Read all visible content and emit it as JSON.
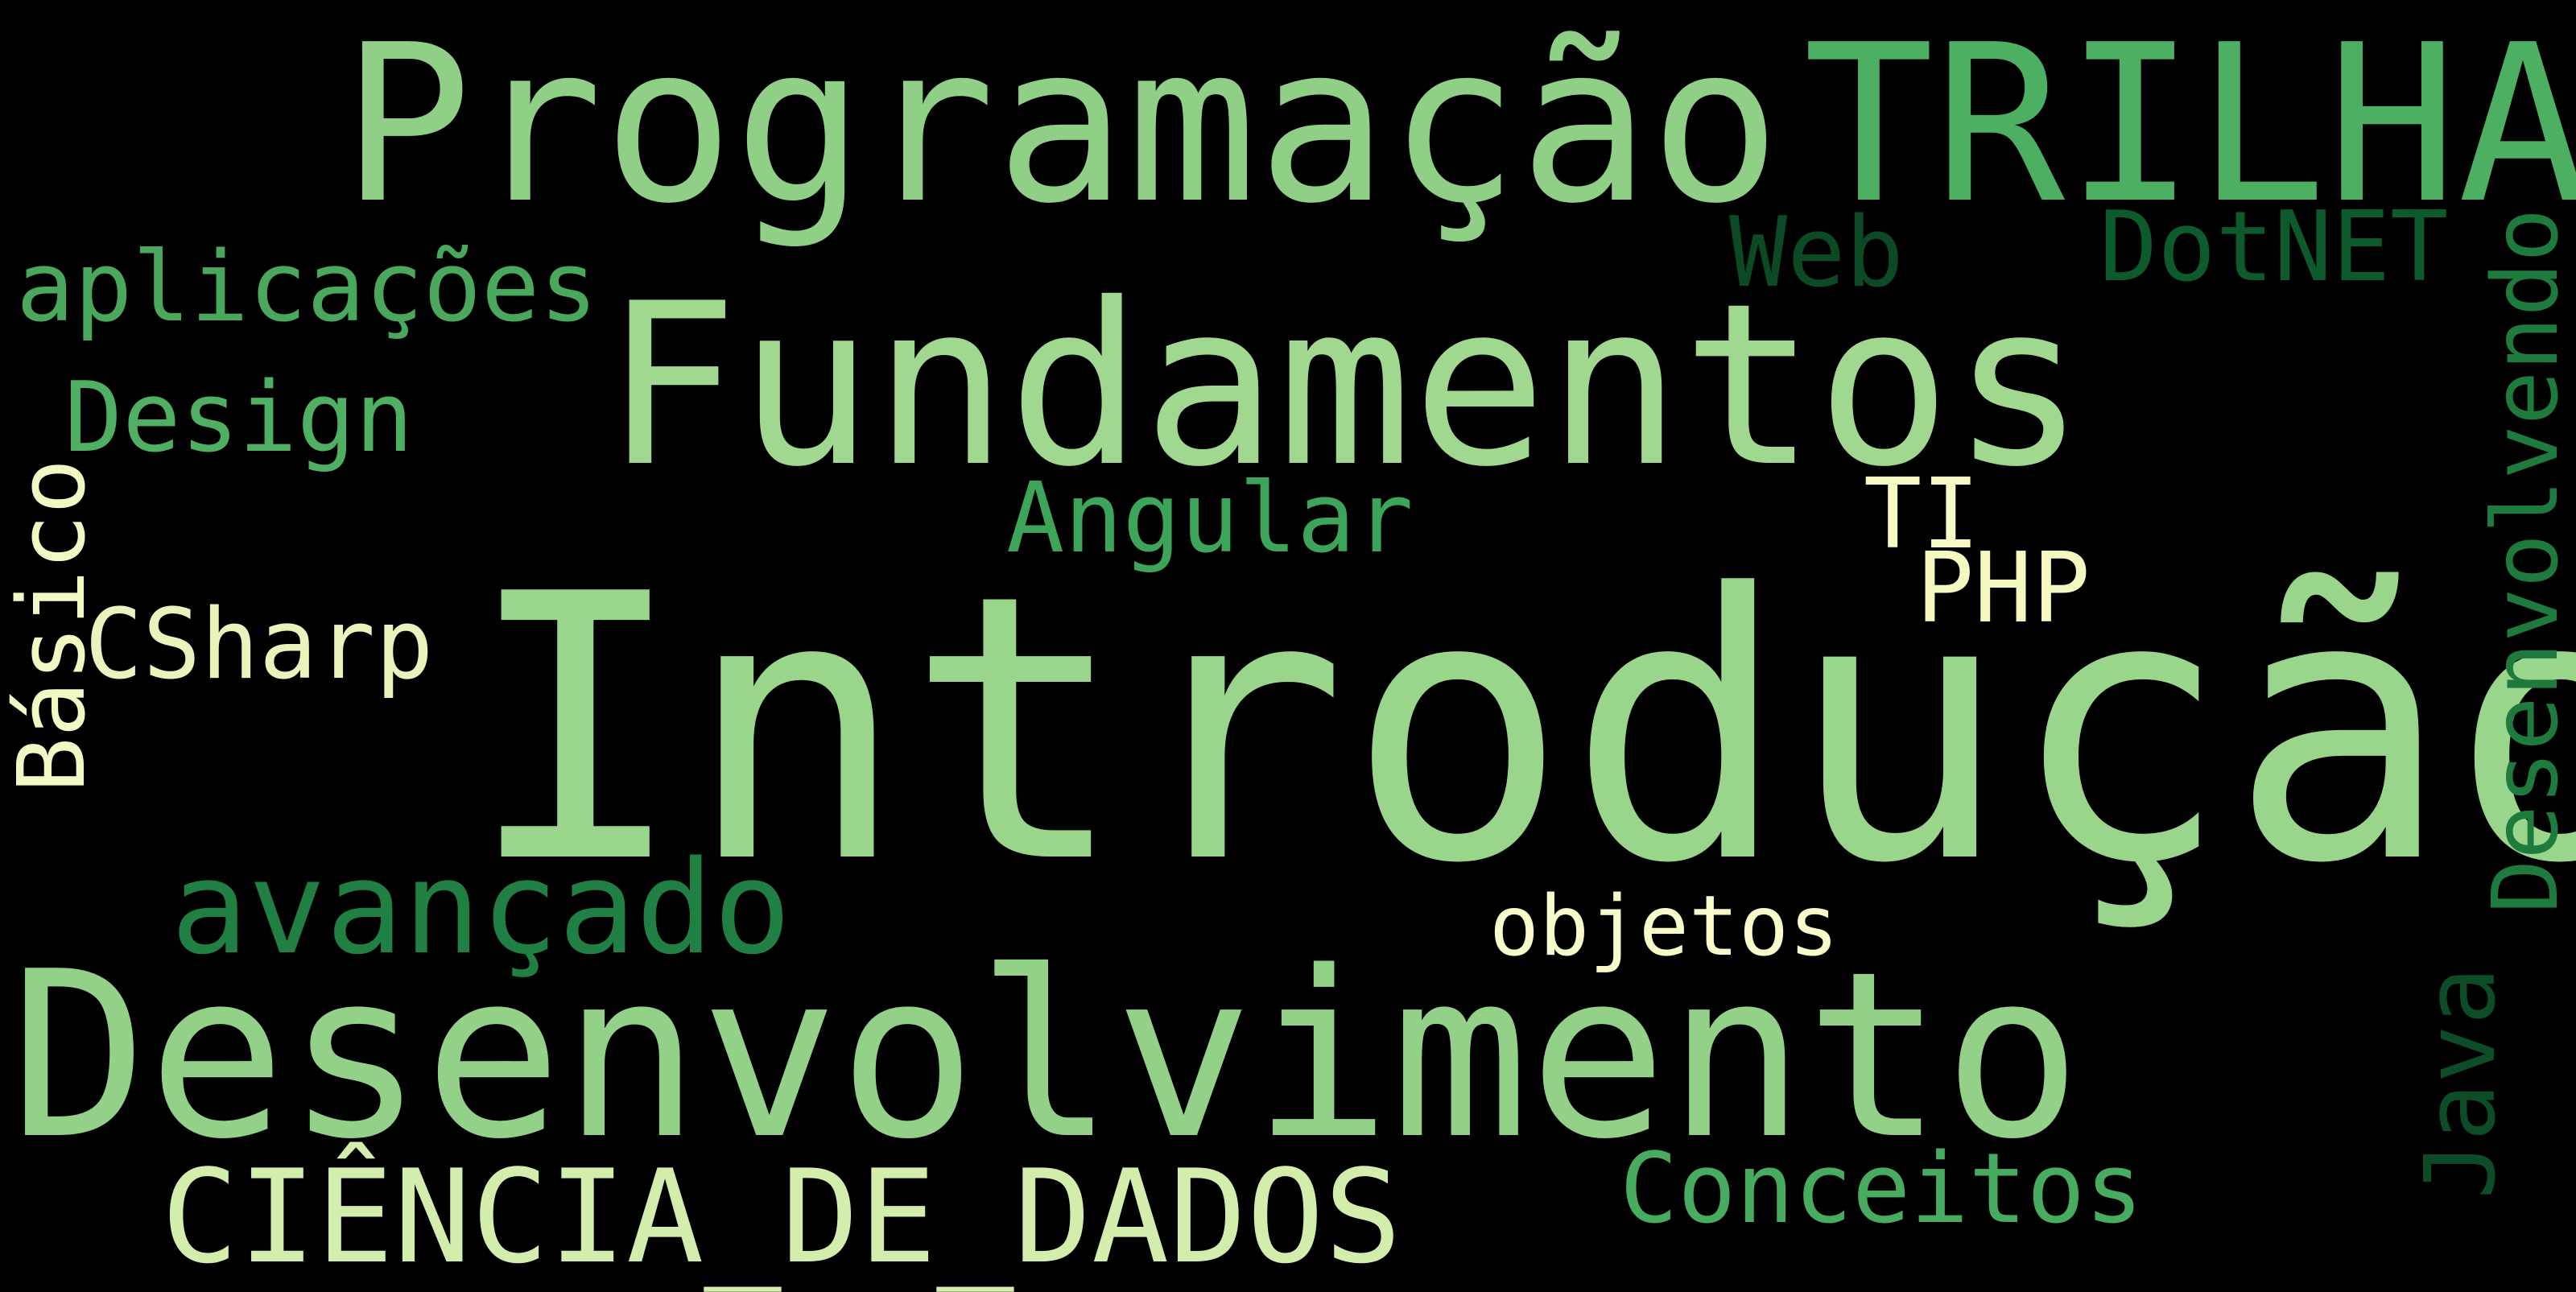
{
  "wordcloud": {
    "background": "#000000",
    "words": [
      {
        "id": "programacao",
        "text": "Programação",
        "color": "#8fcf86",
        "vertical": false
      },
      {
        "id": "trilha",
        "text": "TRILHA",
        "color": "#4caf62",
        "vertical": false
      },
      {
        "id": "aplicacoes",
        "text": "aplicações",
        "color": "#4aa85c",
        "vertical": false
      },
      {
        "id": "web",
        "text": "Web",
        "color": "#0b4a25",
        "vertical": false
      },
      {
        "id": "dotnet",
        "text": "DotNET",
        "color": "#0d5a2c",
        "vertical": false
      },
      {
        "id": "fundamentos",
        "text": "Fundamentos",
        "color": "#a0d88f",
        "vertical": false
      },
      {
        "id": "design",
        "text": "Design",
        "color": "#4fb064",
        "vertical": false
      },
      {
        "id": "basico",
        "text": "Básico",
        "color": "#f2f7c4",
        "vertical": true
      },
      {
        "id": "angular",
        "text": "Angular",
        "color": "#3da55a",
        "vertical": false
      },
      {
        "id": "ti",
        "text": "TI",
        "color": "#f7f9c5",
        "vertical": false
      },
      {
        "id": "php",
        "text": "PHP",
        "color": "#f5f8bf",
        "vertical": false
      },
      {
        "id": "csharp",
        "text": "CSharp",
        "color": "#e9f4bc",
        "vertical": false
      },
      {
        "id": "introducao",
        "text": "Introdução",
        "color": "#99d58a",
        "vertical": false
      },
      {
        "id": "desenvolvendo",
        "text": "Desenvolvendo",
        "color": "#1f7a3e",
        "vertical": true
      },
      {
        "id": "avancado",
        "text": "avançado",
        "color": "#208043",
        "vertical": false
      },
      {
        "id": "objetos",
        "text": "objetos",
        "color": "#f8fbc9",
        "vertical": false
      },
      {
        "id": "java",
        "text": "Java",
        "color": "#0c4d28",
        "vertical": true
      },
      {
        "id": "desenvolvimento",
        "text": "Desenvolvimento",
        "color": "#93d188",
        "vertical": false
      },
      {
        "id": "conceitos",
        "text": "Conceitos",
        "color": "#48ac60",
        "vertical": false
      },
      {
        "id": "ciencia",
        "text": "CIÊNCIA_DE_DADOS",
        "color": "#d2edac",
        "vertical": false
      }
    ]
  }
}
